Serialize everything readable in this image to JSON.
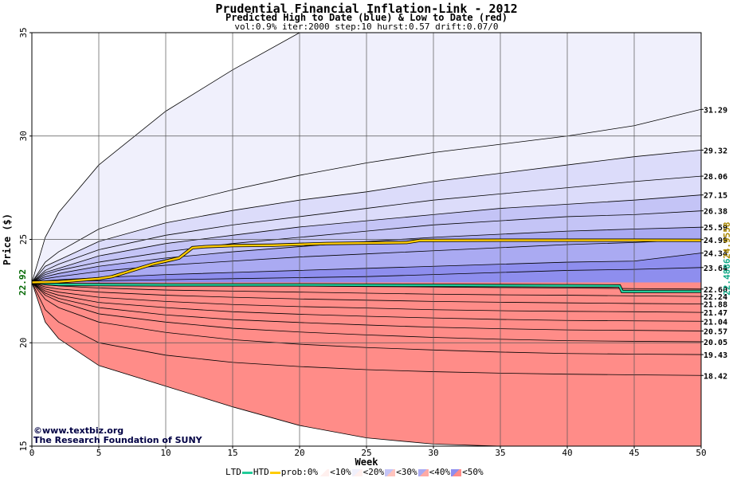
{
  "header": {
    "title": "Prudential Financial Inflation-Link - 2012",
    "subtitle": "Predicted High to Date (blue) &  Low to Date (red)",
    "params": "vol:0.9% iter:2000 step:10 hurst:0.57 drift:0.07/0"
  },
  "credit": {
    "line1": "©www.textbiz.org",
    "line2": "The Research Foundation of SUNY"
  },
  "legend": {
    "ltd": "LTD",
    "htd": "HTD",
    "prob": "prob:0%",
    "b10": "<10%",
    "b20": "<20%",
    "b30": "<30%",
    "b40": "<40%",
    "b50": "<50%"
  },
  "colors": {
    "ltd": "#22cc99",
    "htd": "#ffcc00",
    "blue_bands": [
      "#f0f0fc",
      "#dcdcfa",
      "#c4c4f6",
      "#aaaaf2",
      "#8e8eee"
    ],
    "red_bands": [
      "#fff0ee",
      "#ffdcd8",
      "#ffc4be",
      "#ffaaa4",
      "#ff8c88"
    ]
  },
  "chart_data": {
    "type": "area",
    "title": "Prudential Financial Inflation-Link - 2012",
    "xlabel": "Week",
    "ylabel": "Price ($)",
    "xlim": [
      0,
      50
    ],
    "ylim": [
      15,
      35
    ],
    "xticks": [
      0,
      5,
      10,
      15,
      20,
      25,
      30,
      35,
      40,
      45,
      50
    ],
    "yticks": [
      15,
      20,
      25,
      30,
      35
    ],
    "start_price": 22.92,
    "start_label": "22.92",
    "x": [
      0,
      1,
      2,
      5,
      10,
      15,
      20,
      25,
      30,
      35,
      40,
      45,
      50
    ],
    "high_bands": [
      {
        "label": "31.29",
        "values": [
          22.92,
          25.1,
          26.3,
          28.6,
          31.2,
          33.2,
          35.3,
          35.6,
          35.8,
          35.9,
          36.0,
          36.1,
          36.2
        ]
      },
      {
        "label": "29.32",
        "values": [
          22.92,
          23.9,
          24.4,
          25.5,
          26.6,
          27.4,
          28.1,
          28.7,
          29.2,
          29.6,
          30.0,
          30.5,
          31.29
        ]
      },
      {
        "label": "28.06",
        "values": [
          22.92,
          23.7,
          24.0,
          24.9,
          25.8,
          26.4,
          26.9,
          27.3,
          27.8,
          28.2,
          28.6,
          29.0,
          29.32
        ]
      },
      {
        "label": "27.15",
        "values": [
          22.92,
          23.5,
          23.8,
          24.5,
          25.2,
          25.7,
          26.1,
          26.5,
          26.9,
          27.2,
          27.5,
          27.8,
          28.06
        ]
      },
      {
        "label": "26.38",
        "values": [
          22.92,
          23.4,
          23.6,
          24.2,
          24.8,
          25.2,
          25.6,
          25.9,
          26.2,
          26.5,
          26.7,
          26.9,
          27.15
        ]
      },
      {
        "label": "25.59",
        "values": [
          22.92,
          23.3,
          23.5,
          23.9,
          24.4,
          24.8,
          25.1,
          25.4,
          25.7,
          25.9,
          26.1,
          26.2,
          26.38
        ]
      },
      {
        "label": "24.99",
        "values": [
          22.92,
          23.2,
          23.35,
          23.7,
          24.1,
          24.4,
          24.65,
          24.9,
          25.1,
          25.25,
          25.4,
          25.5,
          25.59
        ]
      },
      {
        "label": "24.34",
        "values": [
          22.92,
          23.1,
          23.2,
          23.45,
          23.75,
          23.95,
          24.15,
          24.3,
          24.45,
          24.6,
          24.75,
          24.85,
          24.99
        ]
      },
      {
        "label": "23.64",
        "values": [
          22.92,
          23.0,
          23.05,
          23.15,
          23.3,
          23.4,
          23.5,
          23.6,
          23.7,
          23.8,
          23.9,
          23.95,
          24.34
        ]
      },
      {
        "label": "",
        "values": [
          22.92,
          22.95,
          22.97,
          23.0,
          23.05,
          23.1,
          23.15,
          23.2,
          23.3,
          23.4,
          23.5,
          23.55,
          23.64
        ]
      }
    ],
    "low_bands": [
      {
        "label": "22.60",
        "values": [
          22.92,
          22.9,
          22.88,
          22.85,
          22.82,
          22.79,
          22.75,
          22.72,
          22.7,
          22.67,
          22.65,
          22.62,
          22.6
        ]
      },
      {
        "label": "22.24",
        "values": [
          22.92,
          22.8,
          22.75,
          22.65,
          22.55,
          22.5,
          22.45,
          22.4,
          22.35,
          22.32,
          22.3,
          22.27,
          22.24
        ]
      },
      {
        "label": "21.88",
        "values": [
          22.92,
          22.7,
          22.6,
          22.45,
          22.3,
          22.2,
          22.12,
          22.06,
          22.0,
          21.96,
          21.93,
          21.9,
          21.88
        ]
      },
      {
        "label": "21.47",
        "values": [
          22.92,
          22.6,
          22.45,
          22.2,
          22.0,
          21.85,
          21.75,
          21.68,
          21.6,
          21.55,
          21.52,
          21.5,
          21.47
        ]
      },
      {
        "label": "21.04",
        "values": [
          22.92,
          22.5,
          22.3,
          21.95,
          21.7,
          21.5,
          21.38,
          21.28,
          21.2,
          21.13,
          21.08,
          21.06,
          21.04
        ]
      },
      {
        "label": "20.57",
        "values": [
          22.92,
          22.4,
          22.15,
          21.7,
          21.35,
          21.12,
          20.98,
          20.86,
          20.75,
          20.68,
          20.62,
          20.6,
          20.57
        ]
      },
      {
        "label": "20.05",
        "values": [
          22.92,
          22.3,
          22.0,
          21.4,
          21.0,
          20.7,
          20.52,
          20.38,
          20.26,
          20.17,
          20.1,
          20.07,
          20.05
        ]
      },
      {
        "label": "19.43",
        "values": [
          22.92,
          22.1,
          21.7,
          21.0,
          20.5,
          20.15,
          19.93,
          19.77,
          19.65,
          19.55,
          19.48,
          19.45,
          19.43
        ]
      },
      {
        "label": "18.42",
        "values": [
          22.92,
          21.6,
          21.0,
          20.0,
          19.4,
          19.05,
          18.85,
          18.7,
          18.6,
          18.53,
          18.48,
          18.45,
          18.42
        ]
      },
      {
        "label": "",
        "values": [
          22.92,
          21.0,
          20.2,
          18.9,
          17.9,
          16.9,
          16.0,
          15.4,
          15.1,
          14.9,
          14.7,
          14.6,
          14.5
        ]
      }
    ],
    "htd_line": {
      "x": [
        0,
        2,
        3,
        4,
        5,
        6,
        7,
        8,
        9,
        10,
        11,
        12,
        13,
        15,
        18,
        22,
        28,
        29,
        35,
        40,
        45,
        50
      ],
      "y": [
        22.92,
        22.95,
        23.0,
        23.05,
        23.1,
        23.2,
        23.4,
        23.6,
        23.8,
        23.95,
        24.1,
        24.6,
        24.65,
        24.7,
        24.72,
        24.8,
        24.85,
        24.95,
        24.96,
        24.96,
        24.96,
        24.9558
      ]
    },
    "ltd_line": {
      "x": [
        0,
        2,
        10,
        20,
        30,
        40,
        43.9,
        44.1,
        50
      ],
      "y": [
        22.92,
        22.82,
        22.8,
        22.8,
        22.78,
        22.76,
        22.75,
        22.48,
        22.4886
      ]
    },
    "htd_label": "24.9558",
    "ltd_label": "22.4886"
  }
}
